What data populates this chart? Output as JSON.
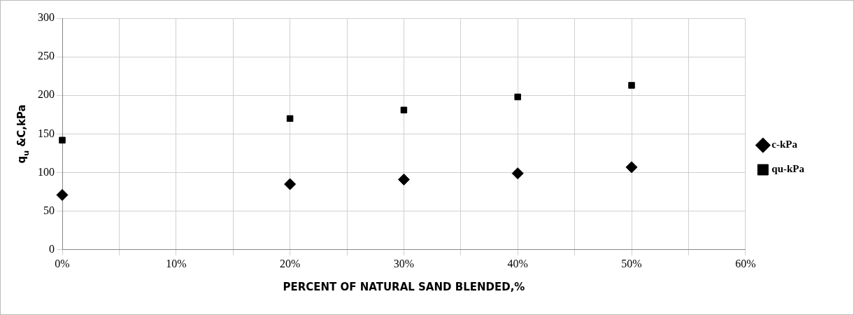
{
  "chart_data": {
    "type": "scatter",
    "xlabel": "PERCENT OF NATURAL SAND BLENDED,%",
    "ylabel": "q$_{u}$ &C,kPa",
    "x": [
      0,
      20,
      30,
      40,
      50
    ],
    "series": [
      {
        "name": "c-kPa",
        "color": "#000000",
        "marker": "diamond",
        "values": [
          71,
          85,
          91,
          99,
          107
        ]
      },
      {
        "name": "qu-kPa",
        "color": "#000000",
        "marker": "square",
        "values": [
          142,
          170,
          181,
          198,
          213
        ]
      }
    ],
    "xlim": [
      0,
      60
    ],
    "xticks": [
      {
        "value": 0,
        "label": "0%"
      },
      {
        "value": 5,
        "label": null
      },
      {
        "value": 10,
        "label": "10%"
      },
      {
        "value": 15,
        "label": null
      },
      {
        "value": 20,
        "label": "20%"
      },
      {
        "value": 25,
        "label": null
      },
      {
        "value": 30,
        "label": "30%"
      },
      {
        "value": 35,
        "label": null
      },
      {
        "value": 40,
        "label": "40%"
      },
      {
        "value": 45,
        "label": null
      },
      {
        "value": 50,
        "label": "50%"
      },
      {
        "value": 55,
        "label": null
      },
      {
        "value": 60,
        "label": "60%"
      }
    ],
    "ylim": [
      0,
      300
    ],
    "yticks": [
      0,
      50,
      100,
      150,
      200,
      250,
      300
    ],
    "grid": true,
    "legend": "right"
  }
}
